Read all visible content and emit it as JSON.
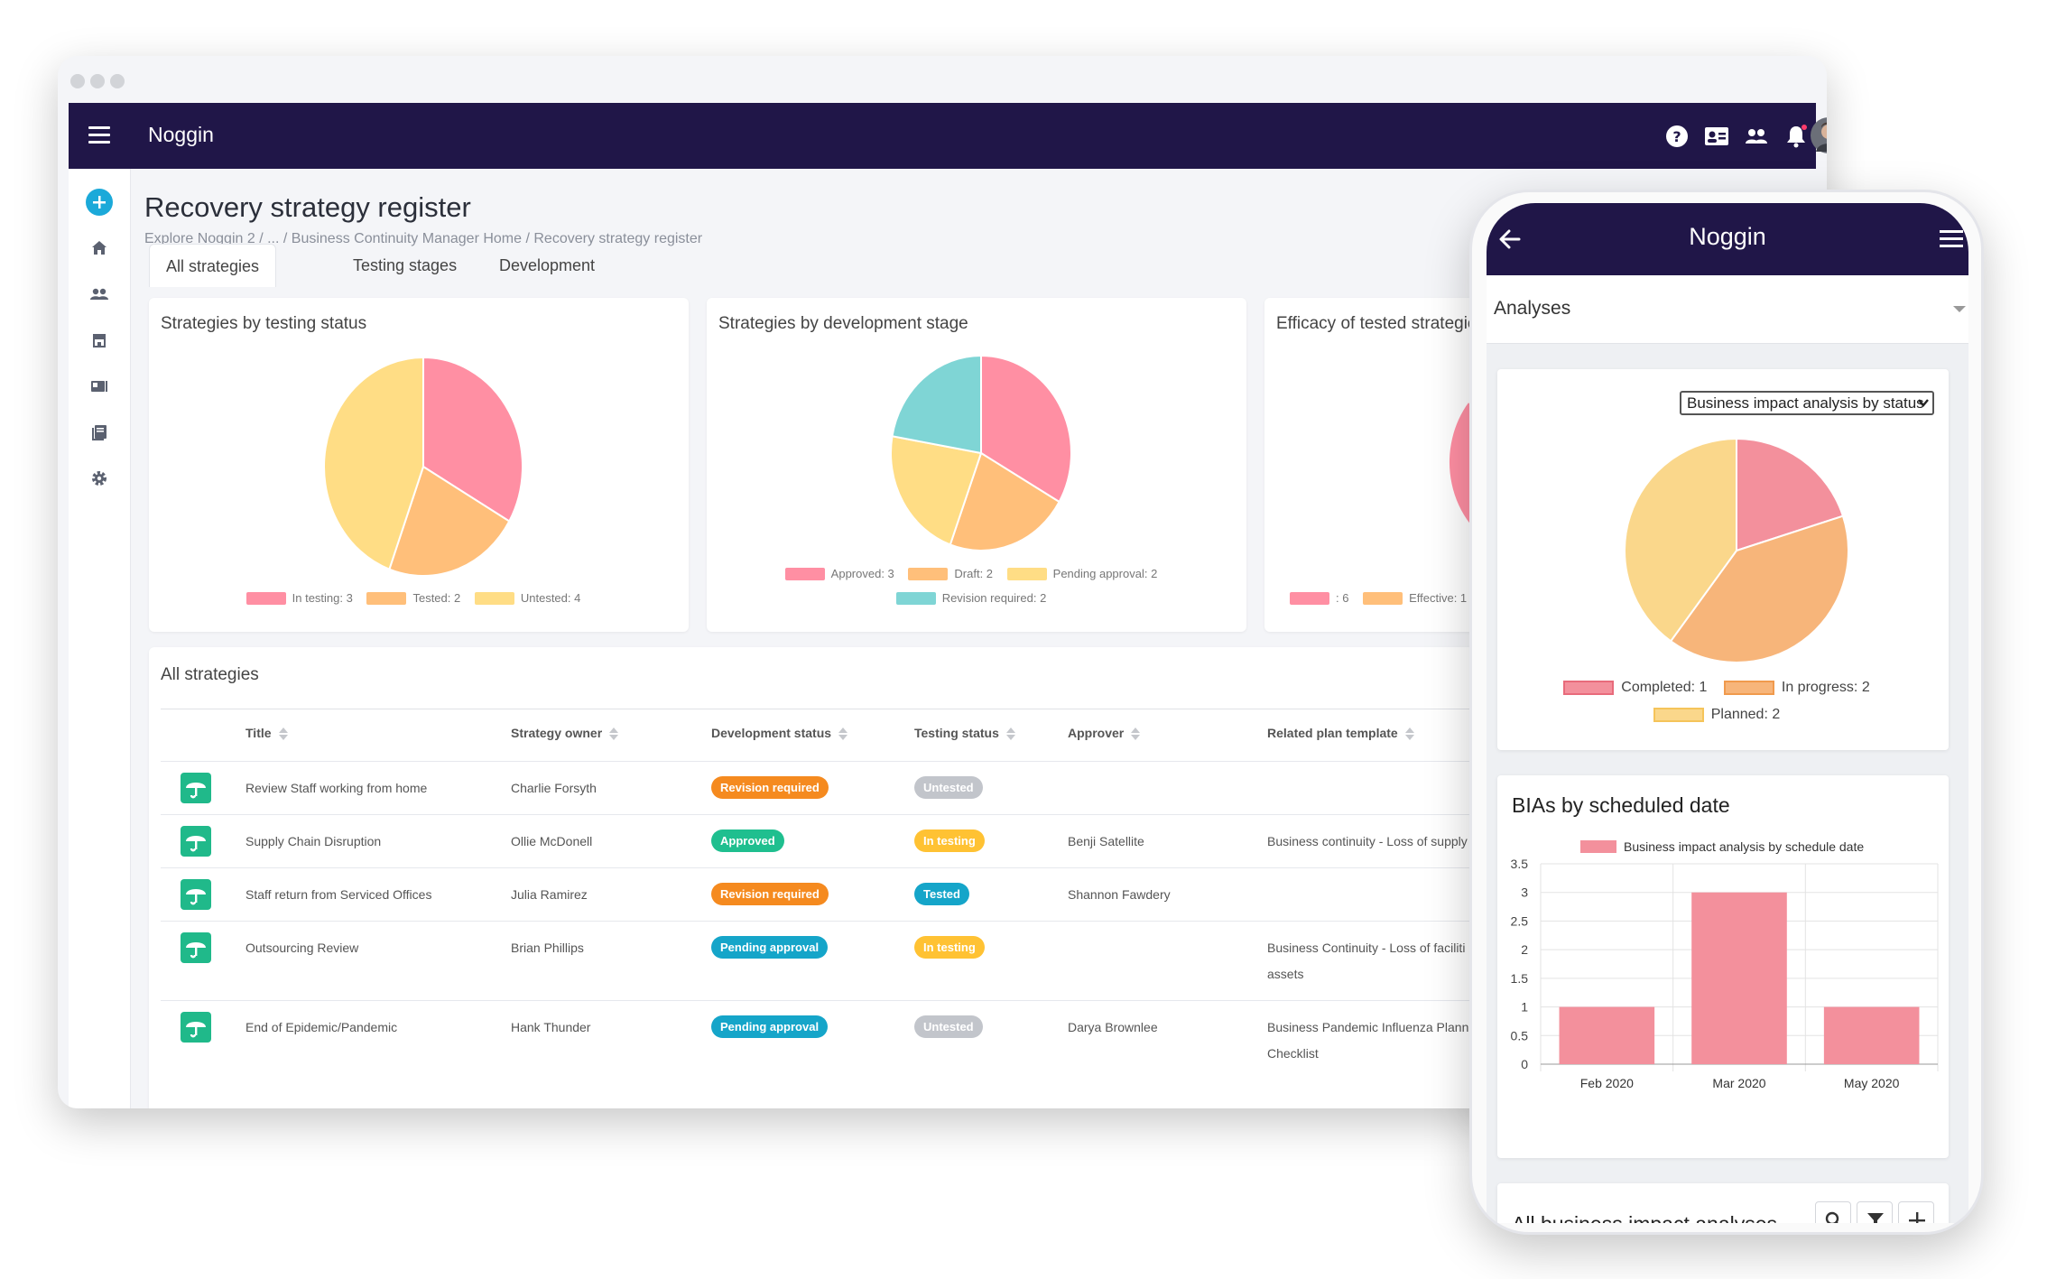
{
  "desktop": {
    "app_name": "Noggin",
    "page_title": "Recovery strategy register",
    "breadcrumb": [
      "Explore Noggin 2 /",
      "... /",
      "Business Continuity Manager Home /",
      "Recovery strategy register"
    ],
    "tabs": [
      {
        "label": "All strategies",
        "active": true
      },
      {
        "label": "Testing stages",
        "active": false
      },
      {
        "label": "Development",
        "active": false
      }
    ],
    "topbar_icons": [
      "help-icon",
      "contact-card-icon",
      "people-icon",
      "bell-icon",
      "user-avatar"
    ],
    "sidebar_icons": [
      "add-icon",
      "home-icon",
      "people-icon",
      "store-icon",
      "id-card-icon",
      "book-icon",
      "gear-icon"
    ],
    "charts": {
      "c1": {
        "title": "Strategies by testing status",
        "legend": [
          {
            "label": "In testing: 3",
            "color": "#ff8fa3"
          },
          {
            "label": "Tested: 2",
            "color": "#ffbf7a"
          },
          {
            "label": "Untested: 4",
            "color": "#ffdd85"
          }
        ]
      },
      "c2": {
        "title": "Strategies by development stage",
        "legend_row1": [
          {
            "label": "Approved: 3",
            "color": "#ff8fa3"
          },
          {
            "label": "Draft: 2",
            "color": "#ffbf7a"
          },
          {
            "label": "Pending approval: 2",
            "color": "#ffdd85"
          }
        ],
        "legend_row2": [
          {
            "label": "Revision required: 2",
            "color": "#7fd5d5"
          }
        ]
      },
      "c3": {
        "title": "Efficacy of tested strategies",
        "legend": [
          {
            "label": ": 6",
            "color": "#ff8fa3"
          },
          {
            "label": "Effective: 1",
            "color": "#ffbf7a"
          }
        ]
      }
    },
    "table": {
      "title": "All strategies",
      "headers": [
        "Title",
        "Strategy owner",
        "Development status",
        "Testing status",
        "Approver",
        "Related plan template"
      ],
      "rows": [
        {
          "title": "Review Staff working from home",
          "owner": "Charlie Forsyth",
          "dev": "Revision required",
          "dev_color": "#f58a1f",
          "test": "Untested",
          "test_color": "#c2c5cb",
          "approver": "",
          "plan1": "",
          "plan2": ""
        },
        {
          "title": "Supply Chain Disruption",
          "owner": "Ollie McDonell",
          "dev": "Approved",
          "dev_color": "#1fbf8f",
          "test": "In testing",
          "test_color": "#ffc233",
          "approver": "Benji Satellite",
          "plan1": "Business continuity - Loss of supply",
          "plan2": ""
        },
        {
          "title": "Staff return from Serviced Offices",
          "owner": "Julia Ramirez",
          "dev": "Revision required",
          "dev_color": "#f58a1f",
          "test": "Tested",
          "test_color": "#15a5c9",
          "approver": "Shannon Fawdery",
          "plan1": "",
          "plan2": ""
        },
        {
          "title": "Outsourcing Review",
          "owner": "Brian Phillips",
          "dev": "Pending approval",
          "dev_color": "#15a5c9",
          "test": "In testing",
          "test_color": "#ffc233",
          "approver": "",
          "plan1": "Business Continuity - Loss of faciliti",
          "plan2": "assets"
        },
        {
          "title": "End of Epidemic/Pandemic",
          "owner": "Hank Thunder",
          "dev": "Pending approval",
          "dev_color": "#15a5c9",
          "test": "Untested",
          "test_color": "#c2c5cb",
          "approver": "Darya Brownlee",
          "plan1": "Business Pandemic Influenza Planni",
          "plan2": "Checklist"
        }
      ]
    }
  },
  "phone": {
    "app_name": "Noggin",
    "section_select": "Analyses",
    "pie_card": {
      "select_value": "Business impact analysis by status",
      "legend": [
        {
          "label": "Completed: 1",
          "color": "#f3909c"
        },
        {
          "label": "In progress: 2",
          "color": "#f7b57a"
        },
        {
          "label": "Planned: 2",
          "color": "#fad78b"
        }
      ]
    },
    "bar_card": {
      "title": "BIAs by scheduled date"
    },
    "list_card": {
      "title": "All business impact analyses",
      "buttons": [
        "search-icon",
        "filter-icon",
        "add-icon"
      ]
    }
  },
  "chart_data": [
    {
      "type": "pie",
      "title": "Strategies by testing status",
      "labels": [
        "In testing",
        "Tested",
        "Untested"
      ],
      "values": [
        3,
        2,
        4
      ],
      "colors": [
        "#ff8fa3",
        "#ffbf7a",
        "#ffdd85"
      ]
    },
    {
      "type": "pie",
      "title": "Strategies by development stage",
      "labels": [
        "Approved",
        "Draft",
        "Pending approval",
        "Revision required"
      ],
      "values": [
        3,
        2,
        2,
        2
      ],
      "colors": [
        "#ff8fa3",
        "#ffbf7a",
        "#ffdd85",
        "#7fd5d5"
      ]
    },
    {
      "type": "pie",
      "title": "Efficacy of tested strategies",
      "labels": [
        "",
        "Effective"
      ],
      "values": [
        6,
        1
      ],
      "colors": [
        "#ff8fa3",
        "#ffbf7a"
      ]
    },
    {
      "type": "pie",
      "title": "Business impact analysis by status",
      "labels": [
        "Completed",
        "In progress",
        "Planned"
      ],
      "values": [
        1,
        2,
        2
      ],
      "colors": [
        "#f3909c",
        "#f7b57a",
        "#fad78b"
      ]
    },
    {
      "type": "bar",
      "title": "BIAs by scheduled date",
      "categories": [
        "Feb 2020",
        "Mar 2020",
        "May 2020"
      ],
      "series": [
        {
          "name": "Business impact analysis by schedule date",
          "values": [
            1,
            3,
            1
          ],
          "color": "#f3909c"
        }
      ],
      "ylim": [
        0,
        3.5
      ],
      "yticks": [
        "3.5",
        "3",
        "2.5",
        "2",
        "1.5",
        "1",
        "0.5",
        "0"
      ],
      "grid": true,
      "legend": "top"
    }
  ]
}
